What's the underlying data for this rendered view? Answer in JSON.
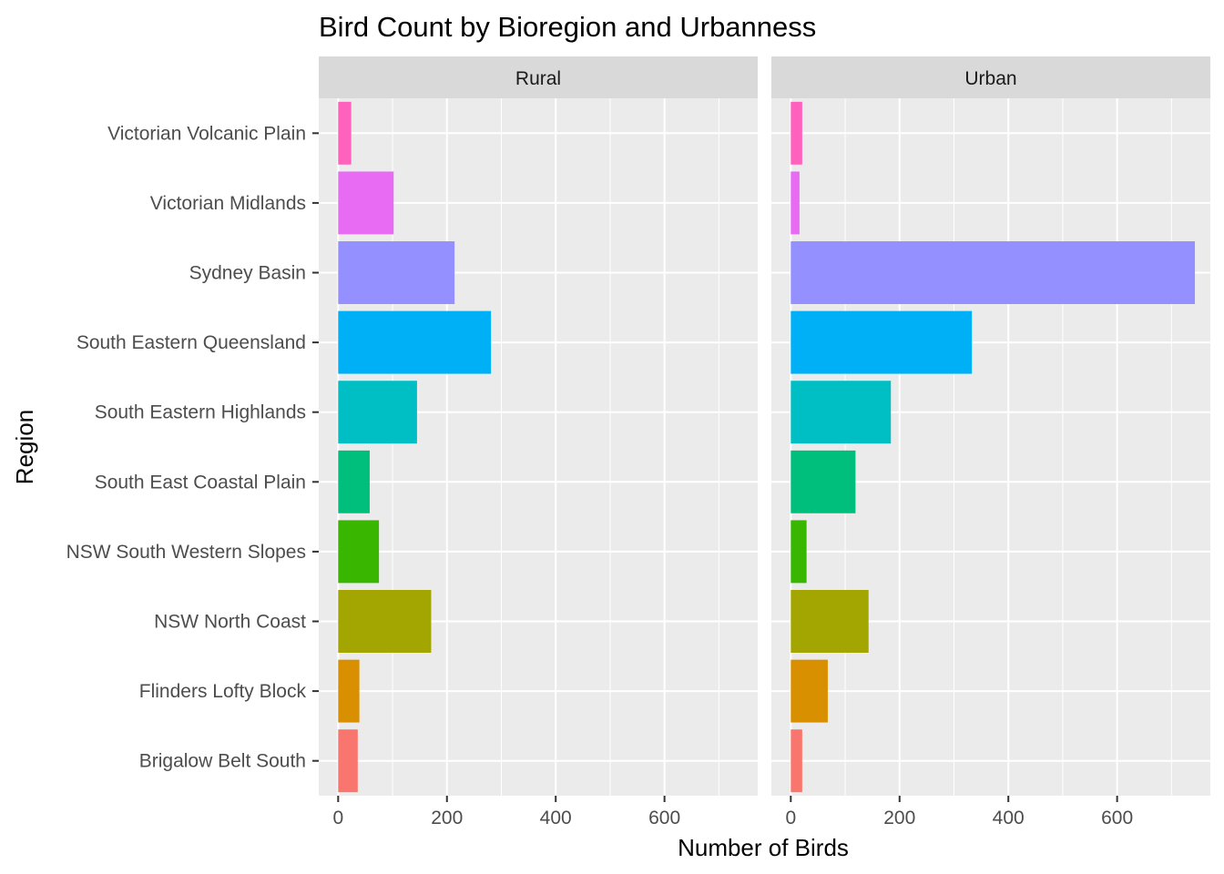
{
  "chart_data": {
    "type": "bar",
    "orientation": "horizontal",
    "title": "Bird Count by Bioregion and Urbanness",
    "xlabel": "Number of Birds",
    "ylabel": "Region",
    "xlim": [
      0,
      750
    ],
    "x_ticks": [
      0,
      200,
      400,
      600
    ],
    "grid": true,
    "legend": "none",
    "categories": [
      "Brigalow Belt South",
      "Flinders Lofty Block",
      "NSW North Coast",
      "NSW South Western Slopes",
      "South East Coastal Plain",
      "South Eastern Highlands",
      "South Eastern Queensland",
      "Sydney Basin",
      "Victorian Midlands",
      "Victorian Volcanic Plain"
    ],
    "colors": [
      "#F8766D",
      "#D89000",
      "#A3A500",
      "#39B600",
      "#00BF7D",
      "#00BFC4",
      "#00B0F6",
      "#9590FF",
      "#E76BF3",
      "#FF62BC"
    ],
    "panels": [
      {
        "name": "Rural",
        "values": [
          36,
          39,
          171,
          75,
          58,
          145,
          281,
          214,
          102,
          24
        ]
      },
      {
        "name": "Urban",
        "values": [
          21,
          68,
          143,
          29,
          119,
          184,
          333,
          743,
          16,
          21
        ]
      }
    ]
  }
}
